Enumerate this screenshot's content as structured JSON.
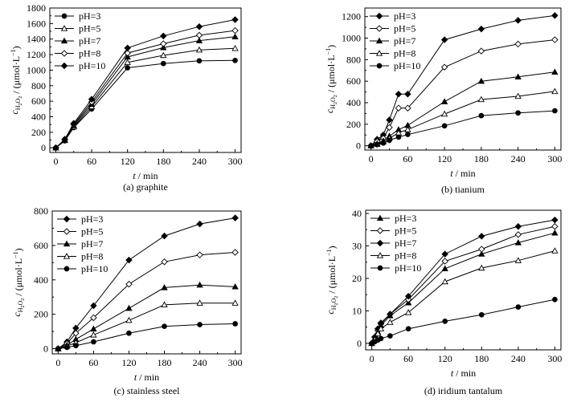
{
  "chart_data": [
    {
      "type": "line",
      "caption": "(a) graphite",
      "xlabel_var": "t",
      "xlabel_unit": " / min",
      "ylabel_var": "c",
      "ylabel_sub": "H",
      "ylabel_sub2": "2",
      "ylabel_sub3": "O",
      "ylabel_sub4": "2",
      "ylabel_unit": " / (μmol·L",
      "ylabel_exp": "−1",
      "ylabel_close": ")",
      "xlim": [
        -10,
        310
      ],
      "ylim": [
        -60,
        1800
      ],
      "xticks": [
        0,
        60,
        120,
        180,
        240,
        300
      ],
      "yticks": [
        0,
        200,
        400,
        600,
        800,
        1000,
        1200,
        1400,
        1600,
        1800
      ],
      "legend_position": "top-left",
      "series": [
        {
          "name": "pH=3",
          "marker": "circle-filled",
          "x": [
            0,
            15,
            30,
            60,
            120,
            180,
            240,
            300
          ],
          "y": [
            0,
            90,
            260,
            500,
            1030,
            1085,
            1120,
            1125
          ]
        },
        {
          "name": "pH=5",
          "marker": "triangle-open",
          "x": [
            0,
            15,
            30,
            60,
            120,
            180,
            240,
            300
          ],
          "y": [
            0,
            95,
            270,
            530,
            1100,
            1190,
            1260,
            1280
          ]
        },
        {
          "name": "pH=7",
          "marker": "triangle-filled",
          "x": [
            0,
            15,
            30,
            60,
            120,
            180,
            240,
            300
          ],
          "y": [
            0,
            100,
            285,
            560,
            1170,
            1290,
            1380,
            1430
          ]
        },
        {
          "name": "pH=8",
          "marker": "diamond-open",
          "x": [
            0,
            15,
            30,
            60,
            120,
            180,
            240,
            300
          ],
          "y": [
            0,
            105,
            300,
            590,
            1220,
            1340,
            1450,
            1510
          ]
        },
        {
          "name": "pH=10",
          "marker": "diamond-filled",
          "x": [
            0,
            15,
            30,
            60,
            120,
            180,
            240,
            300
          ],
          "y": [
            0,
            110,
            315,
            625,
            1285,
            1440,
            1560,
            1650
          ]
        }
      ]
    },
    {
      "type": "line",
      "caption": "(b) tianium",
      "xlabel_var": "t",
      "xlabel_unit": " / min",
      "ylabel_var": "c",
      "ylabel_sub": "H",
      "ylabel_sub2": "2",
      "ylabel_sub3": "O",
      "ylabel_sub4": "2",
      "ylabel_unit": " / (μmol·L",
      "ylabel_exp": "−1",
      "ylabel_close": ")",
      "xlim": [
        -10,
        310
      ],
      "ylim": [
        -40,
        1280
      ],
      "xticks": [
        0,
        60,
        120,
        180,
        240,
        300
      ],
      "yticks": [
        0,
        200,
        400,
        600,
        800,
        1000,
        1200
      ],
      "legend_position": "top-left",
      "series": [
        {
          "name": "pH=3",
          "marker": "diamond-filled",
          "x": [
            0,
            10,
            20,
            30,
            45,
            60,
            120,
            180,
            240,
            300
          ],
          "y": [
            0,
            60,
            100,
            240,
            480,
            480,
            985,
            1085,
            1165,
            1210
          ]
        },
        {
          "name": "pH=5",
          "marker": "diamond-open",
          "x": [
            0,
            10,
            20,
            30,
            45,
            60,
            120,
            180,
            240,
            300
          ],
          "y": [
            0,
            40,
            70,
            170,
            350,
            350,
            730,
            880,
            945,
            985
          ]
        },
        {
          "name": "pH=7",
          "marker": "triangle-filled",
          "x": [
            0,
            10,
            20,
            30,
            45,
            60,
            120,
            180,
            240,
            300
          ],
          "y": [
            0,
            20,
            45,
            90,
            150,
            190,
            410,
            600,
            640,
            685
          ]
        },
        {
          "name": "pH=8",
          "marker": "triangle-open",
          "x": [
            0,
            10,
            20,
            30,
            45,
            60,
            120,
            180,
            240,
            300
          ],
          "y": [
            0,
            15,
            35,
            70,
            120,
            150,
            295,
            430,
            460,
            505
          ]
        },
        {
          "name": "pH=10",
          "marker": "circle-filled",
          "x": [
            0,
            10,
            20,
            30,
            45,
            60,
            120,
            180,
            240,
            300
          ],
          "y": [
            0,
            10,
            25,
            50,
            80,
            105,
            185,
            280,
            305,
            325
          ]
        }
      ]
    },
    {
      "type": "line",
      "caption": "(c) stainless steel",
      "xlabel_var": "t",
      "xlabel_unit": " / min",
      "ylabel_var": "c",
      "ylabel_sub": "H",
      "ylabel_sub2": "2",
      "ylabel_sub3": "O",
      "ylabel_sub4": "2",
      "ylabel_unit": " / (μmol·L",
      "ylabel_exp": "−1",
      "ylabel_close": ")",
      "xlim": [
        -10,
        310
      ],
      "ylim": [
        -30,
        800
      ],
      "xticks": [
        0,
        60,
        120,
        180,
        240,
        300
      ],
      "yticks": [
        0,
        200,
        400,
        600,
        800
      ],
      "legend_position": "top-left",
      "series": [
        {
          "name": "pH=3",
          "marker": "diamond-filled",
          "x": [
            0,
            15,
            30,
            60,
            120,
            180,
            240,
            300
          ],
          "y": [
            0,
            40,
            120,
            250,
            515,
            655,
            725,
            760
          ]
        },
        {
          "name": "pH=5",
          "marker": "diamond-open",
          "x": [
            0,
            15,
            30,
            60,
            120,
            180,
            240,
            300
          ],
          "y": [
            0,
            30,
            90,
            180,
            375,
            505,
            545,
            560
          ]
        },
        {
          "name": "pH=7",
          "marker": "triangle-filled",
          "x": [
            0,
            15,
            30,
            60,
            120,
            180,
            240,
            300
          ],
          "y": [
            0,
            20,
            55,
            115,
            235,
            355,
            370,
            360
          ]
        },
        {
          "name": "pH=8",
          "marker": "triangle-open",
          "x": [
            0,
            15,
            30,
            60,
            120,
            180,
            240,
            300
          ],
          "y": [
            0,
            15,
            35,
            80,
            165,
            255,
            265,
            265
          ]
        },
        {
          "name": "pH=10",
          "marker": "circle-filled",
          "x": [
            0,
            15,
            30,
            60,
            120,
            180,
            240,
            300
          ],
          "y": [
            0,
            8,
            18,
            40,
            90,
            130,
            140,
            145
          ]
        }
      ]
    },
    {
      "type": "line",
      "caption": "(d) iridium tantalum",
      "xlabel_var": "t",
      "xlabel_unit": " / min",
      "ylabel_var": "c",
      "ylabel_sub": "H",
      "ylabel_sub2": "2",
      "ylabel_sub3": "O",
      "ylabel_sub4": "2",
      "ylabel_unit": " / (μmol·L",
      "ylabel_exp": "−1",
      "ylabel_close": ")",
      "xlim": [
        -10,
        310
      ],
      "ylim": [
        -2,
        41
      ],
      "xticks": [
        0,
        60,
        120,
        180,
        240,
        300
      ],
      "yticks": [
        0,
        10,
        20,
        30,
        40
      ],
      "legend_position": "top-left",
      "series": [
        {
          "name": "pH=3",
          "marker": "triangle-filled",
          "x": [
            0,
            5,
            10,
            15,
            30,
            60,
            120,
            180,
            240,
            300
          ],
          "y": [
            0,
            1.5,
            3.5,
            5.5,
            8.5,
            12.5,
            23,
            27.5,
            31,
            34
          ]
        },
        {
          "name": "pH=5",
          "marker": "diamond-open",
          "x": [
            0,
            5,
            10,
            15,
            30,
            60,
            120,
            180,
            240,
            300
          ],
          "y": [
            0,
            1.8,
            4,
            6,
            9,
            13.5,
            25.3,
            29,
            33.5,
            36
          ]
        },
        {
          "name": "pH=7",
          "marker": "diamond-filled",
          "x": [
            0,
            5,
            10,
            15,
            30,
            60,
            120,
            180,
            240,
            300
          ],
          "y": [
            0,
            2,
            4.5,
            6.3,
            9,
            14.5,
            27.5,
            33,
            36,
            38
          ]
        },
        {
          "name": "pH=8",
          "marker": "triangle-open",
          "x": [
            0,
            5,
            10,
            15,
            30,
            60,
            120,
            180,
            240,
            300
          ],
          "y": [
            0,
            1.2,
            3,
            4.5,
            6.5,
            9.5,
            19,
            23.2,
            25.5,
            28.5
          ]
        },
        {
          "name": "pH=10",
          "marker": "circle-filled",
          "x": [
            0,
            5,
            10,
            15,
            30,
            60,
            120,
            180,
            240,
            300
          ],
          "y": [
            0,
            0.5,
            1,
            1.5,
            2.3,
            4.5,
            6.8,
            8.8,
            11.2,
            13.5
          ]
        }
      ]
    }
  ]
}
